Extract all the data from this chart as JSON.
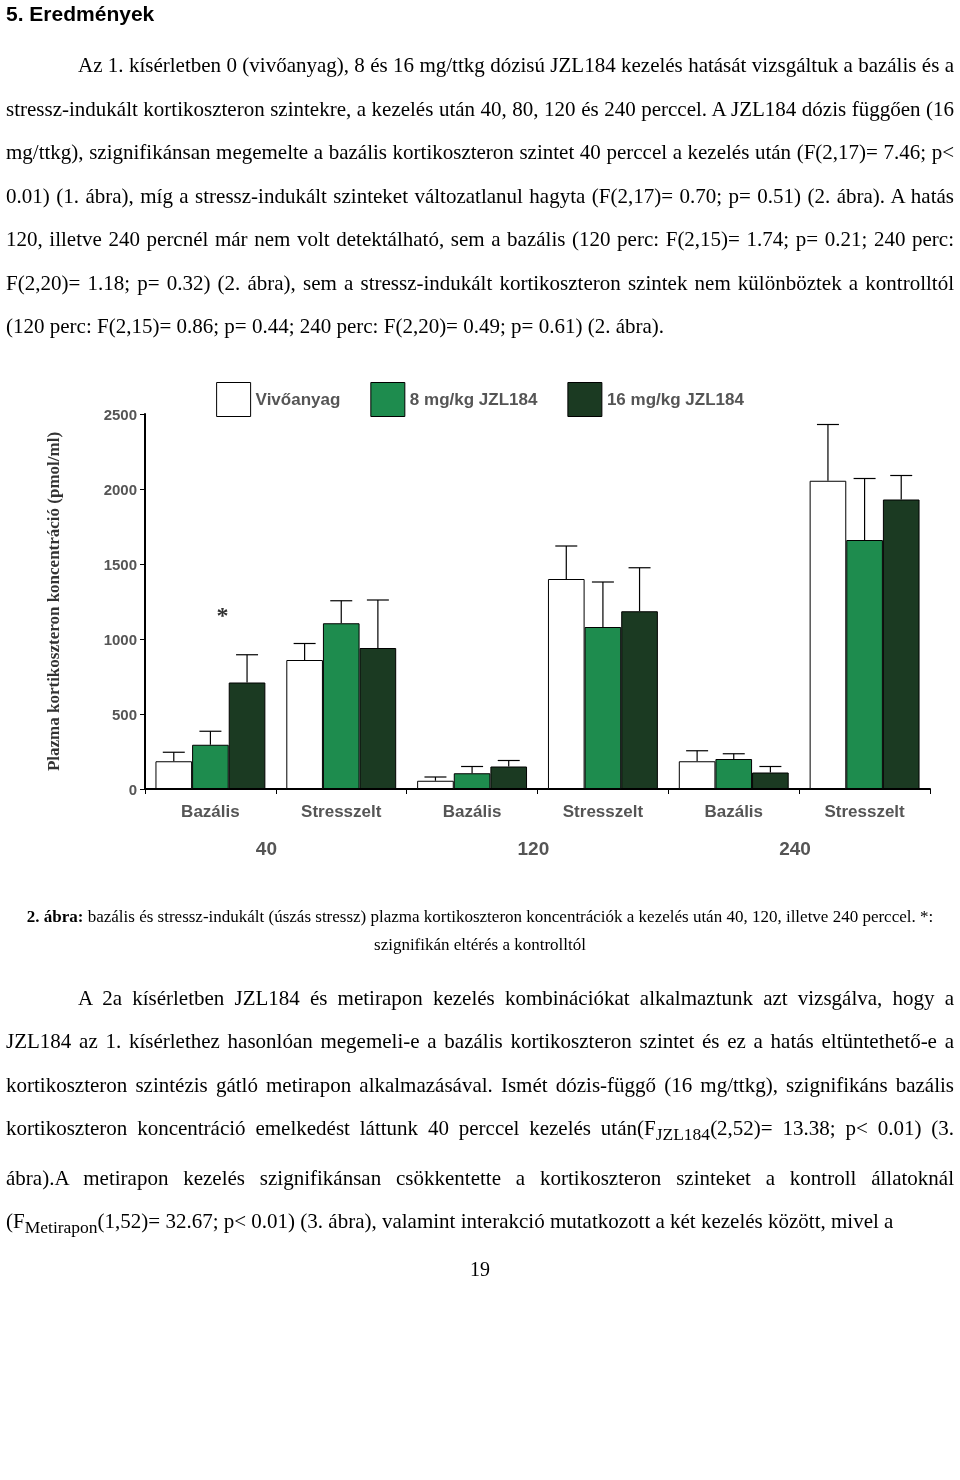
{
  "chart_data": {
    "type": "bar",
    "title": "5. Eredmények",
    "ylabel": "Plazma kortikoszteron koncentráció (pmol/ml)",
    "categories": [
      "Bazális",
      "Stresszelt",
      "Bazális",
      "Stresszelt",
      "Bazális",
      "Stresszelt"
    ],
    "series": [
      {
        "name": "Vivőanyag",
        "color": "#ffffff",
        "values": [
          185,
          860,
          55,
          1400,
          185,
          2055
        ],
        "errors": [
          [
            185,
            245
          ],
          [
            860,
            970
          ],
          [
            55,
            80
          ],
          [
            1400,
            1620
          ],
          [
            185,
            255
          ],
          [
            2055,
            2430
          ]
        ]
      },
      {
        "name": "8 mg/kg JZL184",
        "color": "#1e8c4e",
        "values": [
          295,
          1105,
          105,
          1080,
          200,
          1660
        ],
        "errors": [
          [
            295,
            385
          ],
          [
            1105,
            1255
          ],
          [
            105,
            150
          ],
          [
            1080,
            1380
          ],
          [
            200,
            235
          ],
          [
            1660,
            2070
          ]
        ]
      },
      {
        "name": "16 mg/kg JZL184",
        "color": "#1b3a22",
        "values": [
          710,
          940,
          150,
          1185,
          110,
          1930
        ],
        "errors": [
          [
            710,
            895
          ],
          [
            940,
            1260
          ],
          [
            150,
            190
          ],
          [
            1185,
            1475
          ],
          [
            110,
            150
          ],
          [
            1930,
            2090
          ]
        ]
      }
    ],
    "ylim": [
      0,
      2500
    ],
    "yticks": [
      0,
      500,
      1000,
      1500,
      2000,
      2500
    ],
    "grid": false,
    "legend": "top",
    "annotations": [
      "Az 1. kísérletben 0 (vivőanyag), 8 és 16 mg/ttkg dózisú JZL184 kezelés hatását vizsgáltuk a bazális és a stressz-indukált kortikoszteron szintekre, a kezelés után 40, 80, 120 és 240 perccel. A JZL184 dózis függően (16 mg/ttkg), szignifikánsan megemelte a bazális kortikoszteron szintet 40 perccel a kezelés után (F(2,17)= 7.46; p< 0.01) (1. ábra), míg a stressz-indukált szinteket változatlanul hagyta (F(2,17)= 0.70; p= 0.51) (2. ábra). A hatás 120, illetve 240 percnél már nem volt detektálható, sem a bazális (120 perc: F(2,15)= 1.74; p= 0.21; 240 perc: F(2,20)= 1.18; p= 0.32) (2. ábra), sem a stressz-indukált kortikoszteron szintek nem különböztek a kontrolltól (120 perc: F(2,15)= 0.86; p= 0.44; 240 perc: F(2,20)= 0.49; p= 0.61) (2. ábra).",
      "*",
      "40",
      "120",
      "240",
      "2. ábra: bazális és stressz-indukált (úszás stressz) plazma kortikoszteron koncentrációk a kezelés után 40, 120, illetve 240 perccel. *: szignifikán eltérés a kontrolltól",
      "A 2a kísérletben JZL184 és metirapon kezelés kombinációkat alkalmaztunk azt vizsgálva, hogy a JZL184 az 1. kísérlethez hasonlóan megemeli-e a bazális kortikoszteron szintet és ez a hatás eltüntethető-e a kortikoszteron szintézis gátló metirapon alkalmazásával. Ismét dózis-függő (16 mg/ttkg), szignifikáns bazális kortikoszteron koncentráció emelkedést láttunk 40 perccel kezelés után(F$_{JZL184}$(2,52)= 13.38; p< 0.01) (3. ábra).A metirapon kezelés szignifikánsan csökkentette a kortikoszteron szinteket a kontroll állatoknál (F$_{Metirapon}$(1,52)= 32.67; p< 0.01) (3. ábra), valamint interakció mutatkozott a két kezelés között, mivel a",
      "19"
    ]
  }
}
